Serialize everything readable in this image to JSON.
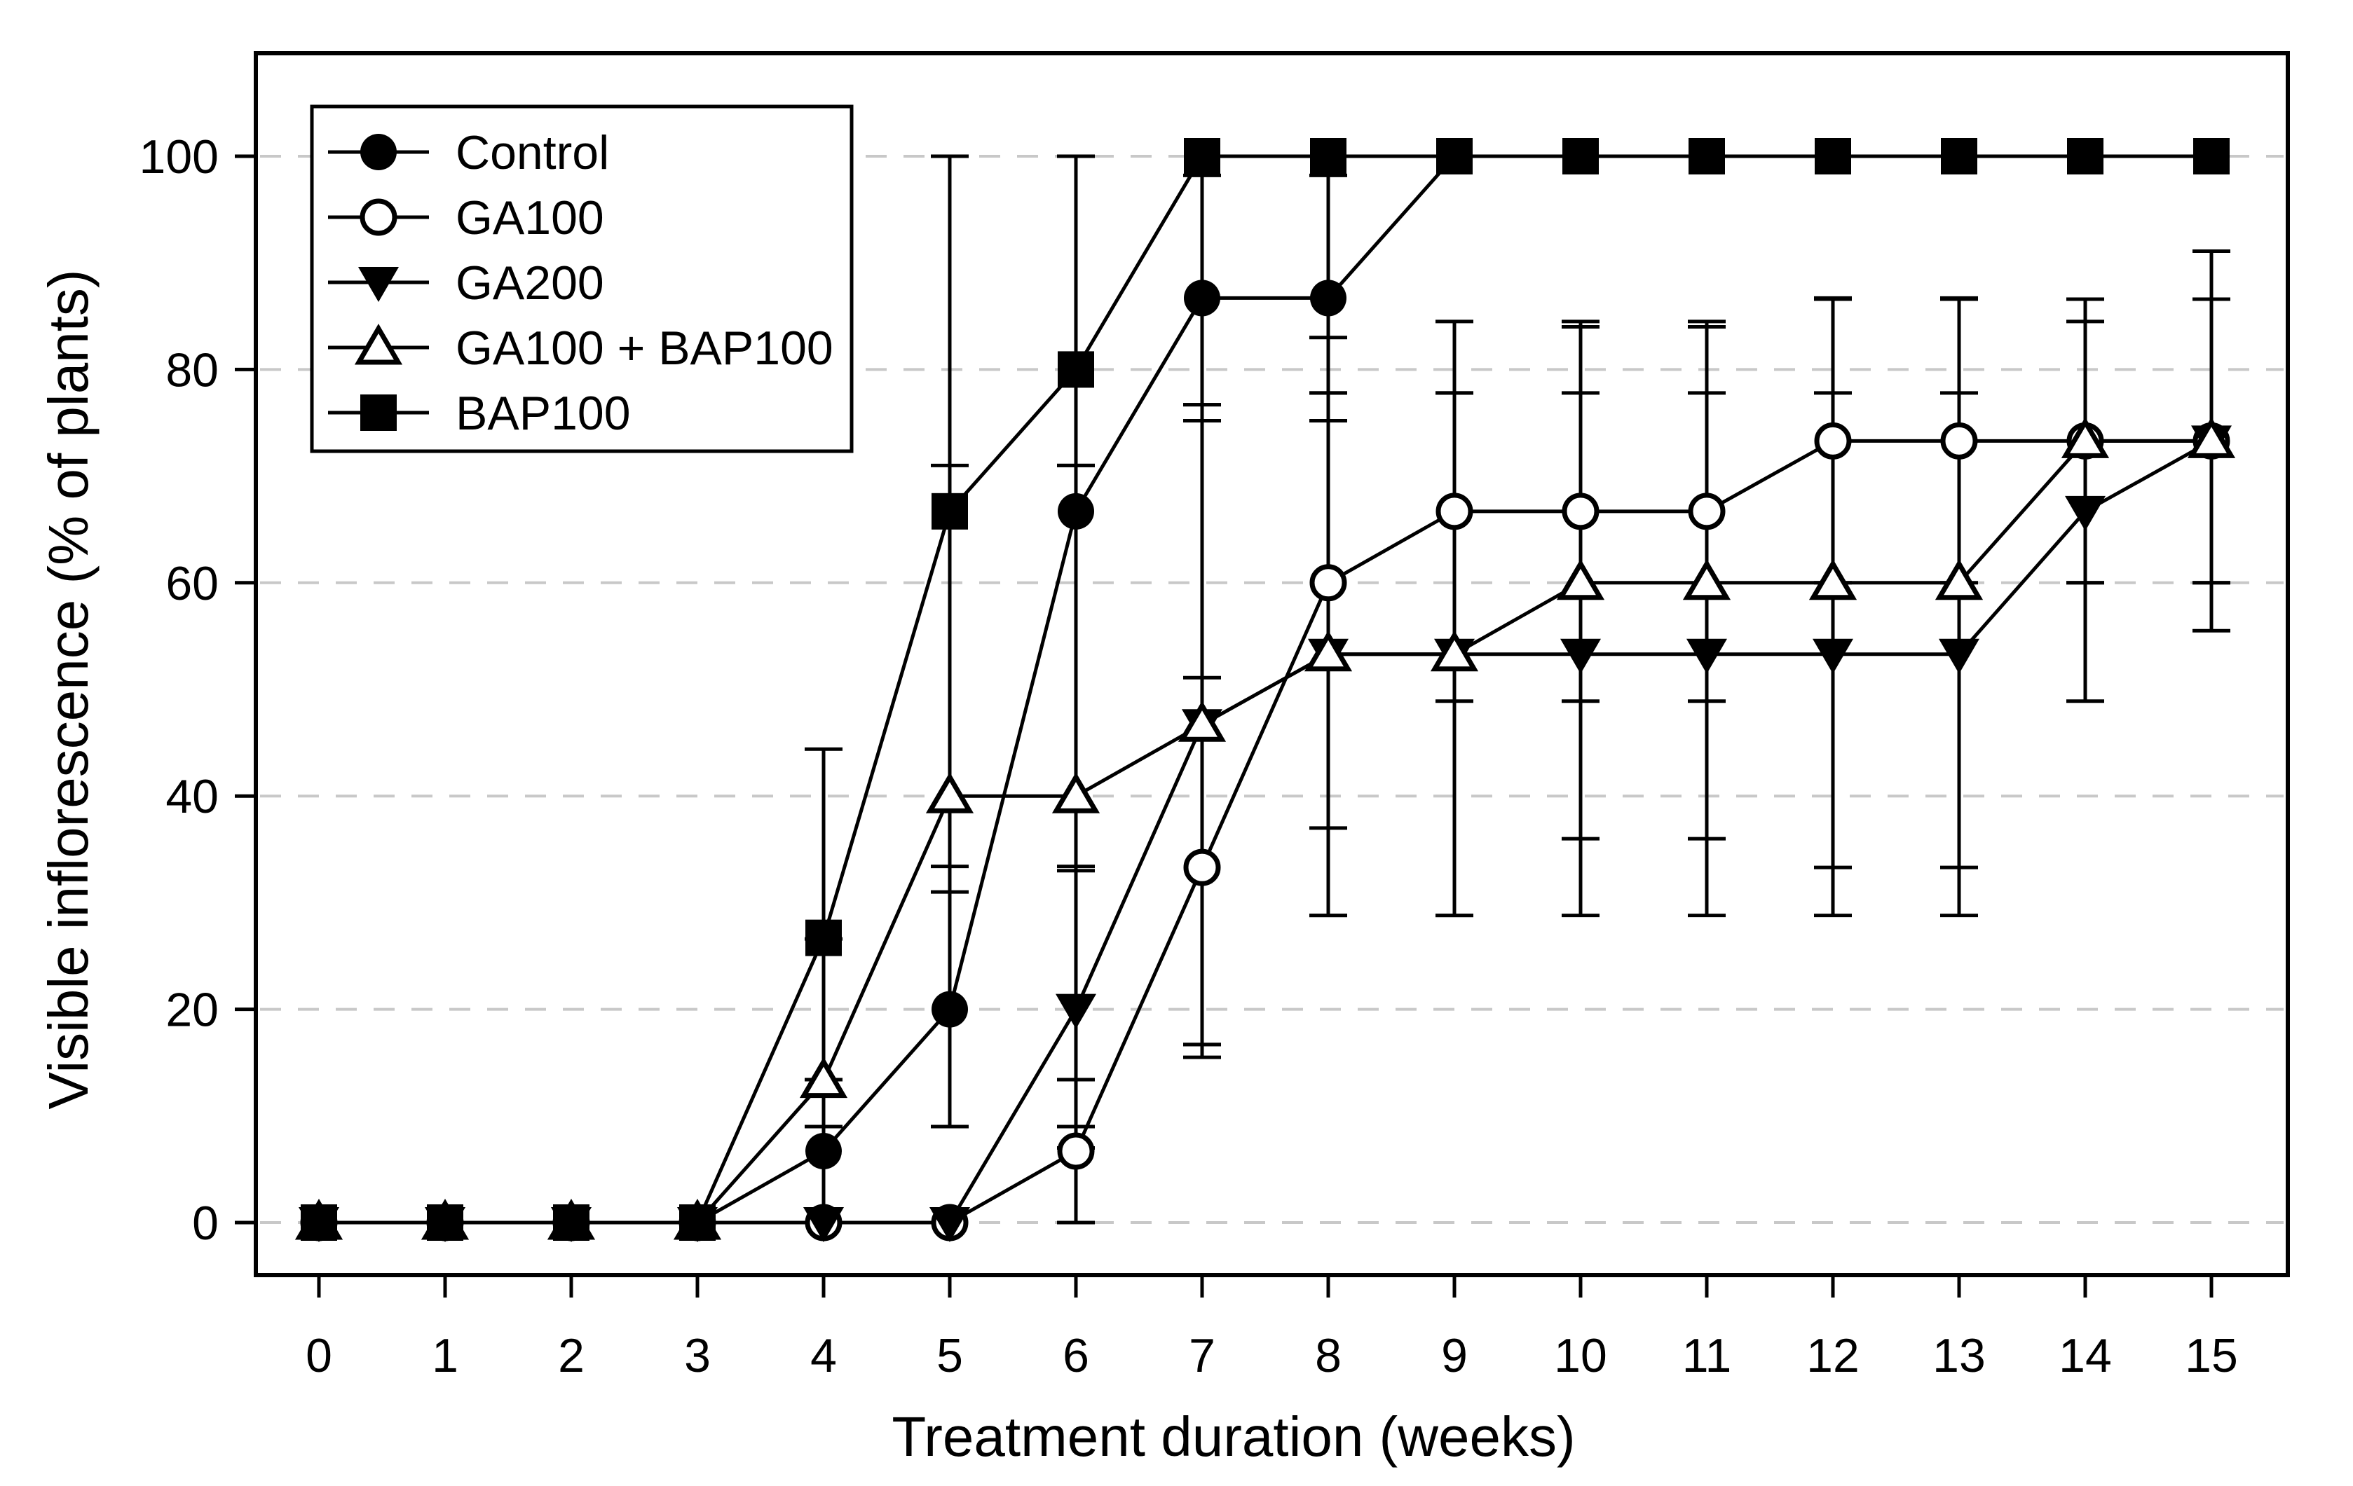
{
  "figure": {
    "background": "#ffffff"
  },
  "colors": {
    "foreground": "#000000",
    "grid": "#c8c8c8",
    "background": "#ffffff"
  },
  "chart_data": {
    "type": "line",
    "title": "",
    "xlabel": "Treatment duration (weeks)",
    "ylabel": "Visible inflorescence (% of plants)",
    "x": [
      0,
      1,
      2,
      3,
      4,
      5,
      6,
      7,
      8,
      9,
      10,
      11,
      12,
      13,
      14,
      15
    ],
    "xticks": [
      "0",
      "1",
      "2",
      "3",
      "4",
      "5",
      "6",
      "7",
      "8",
      "9",
      "10",
      "11",
      "12",
      "13",
      "14",
      "15"
    ],
    "yticks": [
      "0",
      "20",
      "40",
      "60",
      "80",
      "100"
    ],
    "ytick_values": [
      0,
      20,
      40,
      60,
      80,
      100
    ],
    "xlim": [
      -0.5,
      15.6
    ],
    "ylim": [
      -5,
      110
    ],
    "grid": "horizontal-dashed",
    "legend_position": "top-left-inside",
    "series": [
      {
        "name": "Control",
        "marker": "filled-circle",
        "values": [
          0,
          0,
          0,
          0,
          6.7,
          20,
          66.7,
          86.7,
          86.7,
          100,
          100,
          100,
          100,
          100,
          100,
          100
        ],
        "err": [
          null,
          null,
          null,
          null,
          [
            6.7,
            6.7
          ],
          [
            11,
            11
          ],
          [
            33.3,
            33.3
          ],
          [
            11.5,
            11.5
          ],
          [
            11.5,
            11.5
          ],
          null,
          null,
          null,
          null,
          null,
          null,
          null
        ]
      },
      {
        "name": "GA100",
        "marker": "open-circle",
        "values": [
          0,
          0,
          0,
          0,
          0,
          0,
          6.7,
          33.3,
          60,
          66.7,
          66.7,
          66.7,
          73.3,
          73.3,
          73.3,
          73.3
        ],
        "err": [
          null,
          null,
          null,
          null,
          null,
          null,
          [
            6.7,
            6.7
          ],
          [
            17.8,
            17.8
          ],
          [
            23,
            23
          ],
          [
            17.8,
            17.8
          ],
          [
            17.8,
            17.8
          ],
          [
            17.8,
            17.8
          ],
          [
            13.3,
            13.3
          ],
          [
            13.3,
            13.3
          ],
          [
            13.3,
            13.3
          ],
          [
            17.8,
            17.8
          ]
        ]
      },
      {
        "name": "GA200",
        "marker": "filled-triangle-down",
        "values": [
          0,
          0,
          0,
          0,
          0,
          0,
          20,
          46.7,
          53.3,
          53.3,
          53.3,
          53.3,
          53.3,
          53.3,
          66.7,
          73.3
        ],
        "err": [
          null,
          null,
          null,
          null,
          null,
          null,
          [
            13,
            13
          ],
          [
            30,
            30
          ],
          [
            24.5,
            24.5
          ],
          [
            24.5,
            24.5
          ],
          [
            24.5,
            24.5
          ],
          [
            24.5,
            24.5
          ],
          [
            24.5,
            24.5
          ],
          [
            24.5,
            24.5
          ],
          [
            17.8,
            17.8
          ],
          [
            13.3,
            13.3
          ]
        ]
      },
      {
        "name": "GA100 + BAP100",
        "marker": "open-triangle-up",
        "values": [
          0,
          0,
          0,
          0,
          13.3,
          40,
          40,
          46.7,
          53.3,
          53.3,
          60,
          60,
          60,
          60,
          73.3,
          73.3
        ],
        "err": [
          null,
          null,
          null,
          null,
          [
            13.3,
            13.3
          ],
          [
            31,
            31
          ],
          [
            31,
            31
          ],
          [
            30,
            30
          ],
          [
            24.5,
            24.5
          ],
          [
            24.5,
            24.5
          ],
          [
            24,
            24
          ],
          [
            24,
            24
          ],
          [
            26.7,
            26.7
          ],
          [
            26.7,
            26.7
          ],
          [
            13.3,
            13.3
          ],
          [
            13.3,
            13.3
          ]
        ]
      },
      {
        "name": "BAP100",
        "marker": "filled-square",
        "values": [
          0,
          0,
          0,
          0,
          26.7,
          66.7,
          80,
          100,
          100,
          100,
          100,
          100,
          100,
          100,
          100,
          100
        ],
        "err": [
          null,
          null,
          null,
          null,
          [
            17.7,
            17.7
          ],
          [
            33.3,
            33.3
          ],
          [
            9,
            20
          ],
          null,
          null,
          null,
          null,
          null,
          null,
          null,
          null,
          null
        ]
      }
    ]
  }
}
